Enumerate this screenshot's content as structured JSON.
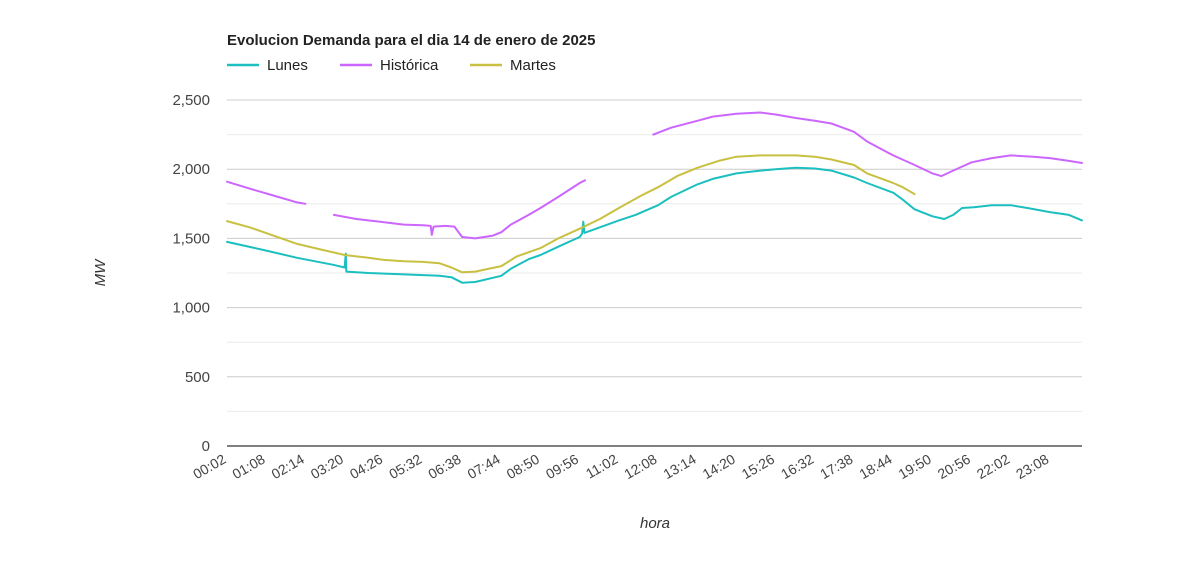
{
  "chart_data": {
    "type": "line",
    "title": "Evolucion Demanda para el dia 14 de enero de 2025",
    "xlabel": "hora",
    "ylabel": "MW",
    "x_start": "00:02",
    "x_end": "24:02",
    "x_ticks": [
      "00:02",
      "01:08",
      "02:14",
      "03:20",
      "04:26",
      "05:32",
      "06:38",
      "07:44",
      "08:50",
      "09:56",
      "11:02",
      "12:08",
      "13:14",
      "14:20",
      "15:26",
      "16:32",
      "17:38",
      "18:44",
      "19:50",
      "20:56",
      "22:02",
      "23:08"
    ],
    "ylim": [
      0,
      2500
    ],
    "y_ticks": [
      0,
      500,
      1000,
      1500,
      2000,
      2500
    ],
    "y_tick_labels": [
      "0",
      "500",
      "1,000",
      "1,500",
      "2,000",
      "2,500"
    ],
    "grid": true,
    "legend": "top-left",
    "series": [
      {
        "name": "Lunes",
        "color": "#1bbfbf",
        "points": [
          [
            "00:02",
            1475
          ],
          [
            "01:00",
            1420
          ],
          [
            "02:00",
            1360
          ],
          [
            "03:00",
            1310
          ],
          [
            "03:20",
            1290
          ],
          [
            "03:22",
            1390
          ],
          [
            "03:23",
            1260
          ],
          [
            "04:00",
            1250
          ],
          [
            "05:00",
            1240
          ],
          [
            "05:32",
            1235
          ],
          [
            "06:00",
            1230
          ],
          [
            "06:20",
            1220
          ],
          [
            "06:38",
            1180
          ],
          [
            "07:00",
            1185
          ],
          [
            "07:44",
            1230
          ],
          [
            "08:00",
            1280
          ],
          [
            "08:30",
            1350
          ],
          [
            "08:50",
            1380
          ],
          [
            "09:20",
            1440
          ],
          [
            "09:56",
            1510
          ],
          [
            "10:00",
            1535
          ],
          [
            "10:02",
            1620
          ],
          [
            "10:04",
            1540
          ],
          [
            "10:30",
            1580
          ],
          [
            "11:02",
            1630
          ],
          [
            "11:30",
            1670
          ],
          [
            "12:08",
            1740
          ],
          [
            "12:30",
            1800
          ],
          [
            "13:14",
            1890
          ],
          [
            "13:40",
            1930
          ],
          [
            "14:20",
            1970
          ],
          [
            "15:00",
            1990
          ],
          [
            "15:26",
            2000
          ],
          [
            "16:00",
            2010
          ],
          [
            "16:32",
            2005
          ],
          [
            "17:00",
            1990
          ],
          [
            "17:38",
            1940
          ],
          [
            "18:00",
            1900
          ],
          [
            "18:44",
            1830
          ],
          [
            "19:00",
            1780
          ],
          [
            "19:20",
            1710
          ],
          [
            "19:50",
            1660
          ],
          [
            "20:10",
            1640
          ],
          [
            "20:25",
            1670
          ],
          [
            "20:40",
            1720
          ],
          [
            "21:00",
            1725
          ],
          [
            "21:30",
            1740
          ],
          [
            "22:02",
            1740
          ],
          [
            "22:30",
            1720
          ],
          [
            "23:08",
            1690
          ],
          [
            "23:40",
            1670
          ],
          [
            "24:02",
            1630
          ]
        ]
      },
      {
        "name": "Histórica",
        "color": "#cc66ff",
        "segments": [
          [
            [
              "00:02",
              1910
            ],
            [
              "00:40",
              1860
            ],
            [
              "01:20",
              1810
            ],
            [
              "02:00",
              1760
            ],
            [
              "02:14",
              1750
            ]
          ],
          [
            [
              "03:02",
              1670
            ],
            [
              "03:40",
              1640
            ],
            [
              "04:20",
              1620
            ],
            [
              "05:00",
              1600
            ],
            [
              "05:32",
              1595
            ],
            [
              "05:45",
              1590
            ],
            [
              "05:47",
              1525
            ],
            [
              "05:50",
              1585
            ],
            [
              "06:10",
              1590
            ],
            [
              "06:25",
              1585
            ],
            [
              "06:38",
              1510
            ],
            [
              "07:00",
              1500
            ],
            [
              "07:30",
              1520
            ],
            [
              "07:44",
              1545
            ],
            [
              "08:00",
              1600
            ],
            [
              "08:30",
              1670
            ],
            [
              "08:50",
              1720
            ],
            [
              "09:20",
              1800
            ],
            [
              "09:56",
              1900
            ],
            [
              "10:05",
              1920
            ]
          ],
          [
            [
              "12:00",
              2250
            ],
            [
              "12:30",
              2300
            ],
            [
              "13:14",
              2350
            ],
            [
              "13:40",
              2380
            ],
            [
              "14:20",
              2400
            ],
            [
              "15:00",
              2410
            ],
            [
              "15:26",
              2395
            ],
            [
              "16:00",
              2370
            ],
            [
              "16:32",
              2350
            ],
            [
              "17:00",
              2330
            ],
            [
              "17:38",
              2270
            ],
            [
              "18:00",
              2200
            ],
            [
              "18:44",
              2100
            ],
            [
              "19:20",
              2030
            ],
            [
              "19:50",
              1970
            ],
            [
              "20:05",
              1950
            ],
            [
              "20:25",
              1990
            ],
            [
              "20:56",
              2050
            ],
            [
              "21:30",
              2080
            ],
            [
              "22:02",
              2100
            ],
            [
              "22:40",
              2090
            ],
            [
              "23:08",
              2080
            ],
            [
              "23:40",
              2060
            ],
            [
              "24:02",
              2045
            ]
          ]
        ]
      },
      {
        "name": "Martes",
        "color": "#c8c040",
        "points": [
          [
            "00:02",
            1625
          ],
          [
            "00:40",
            1580
          ],
          [
            "01:20",
            1520
          ],
          [
            "02:00",
            1460
          ],
          [
            "02:40",
            1420
          ],
          [
            "03:20",
            1380
          ],
          [
            "04:00",
            1360
          ],
          [
            "04:26",
            1345
          ],
          [
            "05:00",
            1335
          ],
          [
            "05:32",
            1330
          ],
          [
            "06:00",
            1320
          ],
          [
            "06:20",
            1290
          ],
          [
            "06:38",
            1255
          ],
          [
            "07:00",
            1260
          ],
          [
            "07:44",
            1300
          ],
          [
            "08:10",
            1370
          ],
          [
            "08:50",
            1430
          ],
          [
            "09:20",
            1500
          ],
          [
            "09:56",
            1570
          ],
          [
            "10:30",
            1640
          ],
          [
            "11:02",
            1720
          ],
          [
            "11:40",
            1810
          ],
          [
            "12:08",
            1870
          ],
          [
            "12:40",
            1950
          ],
          [
            "13:14",
            2010
          ],
          [
            "13:50",
            2060
          ],
          [
            "14:20",
            2090
          ],
          [
            "15:00",
            2100
          ],
          [
            "15:26",
            2100
          ],
          [
            "16:00",
            2100
          ],
          [
            "16:32",
            2090
          ],
          [
            "17:00",
            2070
          ],
          [
            "17:38",
            2030
          ],
          [
            "18:00",
            1970
          ],
          [
            "18:44",
            1900
          ],
          [
            "19:00",
            1870
          ],
          [
            "19:20",
            1820
          ]
        ]
      }
    ]
  }
}
